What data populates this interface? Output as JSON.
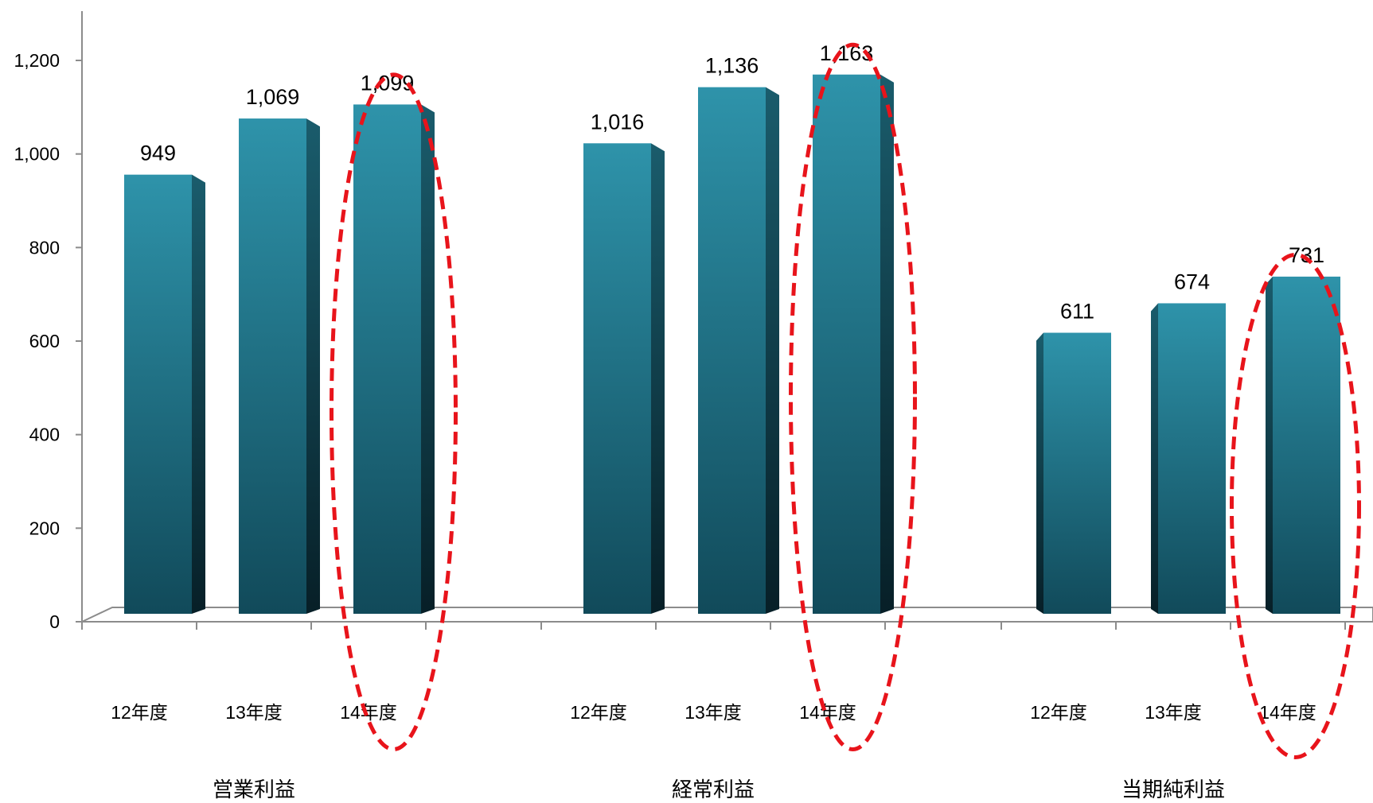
{
  "chart_data": {
    "type": "bar",
    "ylim": [
      0,
      1200
    ],
    "y_ticks": [
      "0",
      "200",
      "400",
      "600",
      "800",
      "1,000",
      "1,200"
    ],
    "y_tick_values": [
      0,
      200,
      400,
      600,
      800,
      1000,
      1200
    ],
    "groups": [
      {
        "label": "営業利益",
        "categories": [
          "12年度",
          "13年度",
          "14年度"
        ],
        "values": [
          949,
          1069,
          1099
        ],
        "value_labels": [
          "949",
          "1,069",
          "1,099"
        ],
        "highlighted": "14年度"
      },
      {
        "label": "経常利益",
        "categories": [
          "12年度",
          "13年度",
          "14年度"
        ],
        "values": [
          1016,
          1136,
          1163
        ],
        "value_labels": [
          "1,016",
          "1,136",
          "1,163"
        ],
        "highlighted": "14年度"
      },
      {
        "label": "当期純利益",
        "categories": [
          "12年度",
          "13年度",
          "14年度"
        ],
        "values": [
          611,
          674,
          731
        ],
        "value_labels": [
          "611",
          "674",
          "731"
        ],
        "highlighted": "14年度"
      }
    ],
    "grid": false,
    "legend": "none",
    "colors": {
      "bar_top": "#2e93aa",
      "bar_bottom": "#114a5a",
      "bar_side": "#0b2f3a",
      "highlight": "#e8141b",
      "axis": "#8c8c8c"
    }
  }
}
